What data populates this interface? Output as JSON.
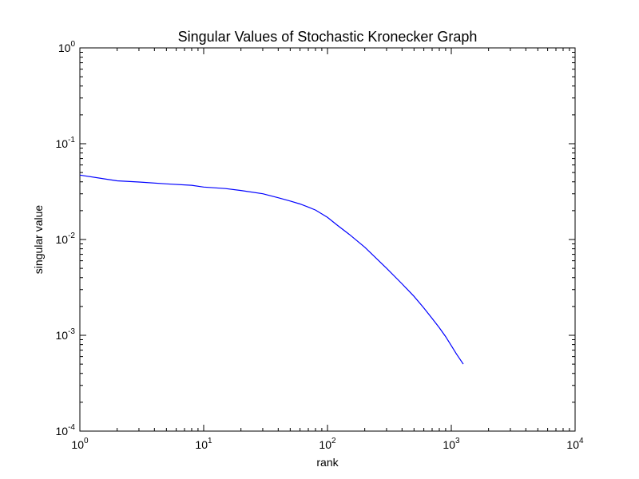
{
  "chart_data": {
    "type": "line",
    "title": "Singular Values of Stochastic Kronecker Graph",
    "xlabel": "rank",
    "ylabel": "singular value",
    "xscale": "log",
    "yscale": "log",
    "xlim": [
      1,
      10000
    ],
    "ylim": [
      0.0001,
      1
    ],
    "grid": false,
    "line_color": "#0000ff",
    "x_ticks": [
      {
        "value": 1,
        "base": "10",
        "exp": "0"
      },
      {
        "value": 10,
        "base": "10",
        "exp": "1"
      },
      {
        "value": 100,
        "base": "10",
        "exp": "2"
      },
      {
        "value": 1000,
        "base": "10",
        "exp": "3"
      },
      {
        "value": 10000,
        "base": "10",
        "exp": "4"
      }
    ],
    "y_ticks": [
      {
        "value": 0.0001,
        "base": "10",
        "exp": "-4"
      },
      {
        "value": 0.001,
        "base": "10",
        "exp": "-3"
      },
      {
        "value": 0.01,
        "base": "10",
        "exp": "-2"
      },
      {
        "value": 0.1,
        "base": "10",
        "exp": "-1"
      },
      {
        "value": 1,
        "base": "10",
        "exp": "0"
      }
    ],
    "series": [
      {
        "x": [
          1,
          2,
          3,
          5,
          8,
          10,
          15,
          20,
          30,
          40,
          50,
          60,
          70,
          80,
          100,
          120,
          150,
          200,
          300,
          400,
          500,
          600,
          700,
          800,
          900,
          1000,
          1100,
          1250
        ],
        "y": [
          0.047,
          0.041,
          0.0398,
          0.0381,
          0.0368,
          0.0353,
          0.034,
          0.0325,
          0.03,
          0.0273,
          0.0252,
          0.0235,
          0.0218,
          0.0203,
          0.017,
          0.0141,
          0.0113,
          0.0083,
          0.005,
          0.00345,
          0.00255,
          0.00193,
          0.0015,
          0.0012,
          0.00097,
          0.00078,
          0.00064,
          0.0005
        ]
      }
    ]
  }
}
